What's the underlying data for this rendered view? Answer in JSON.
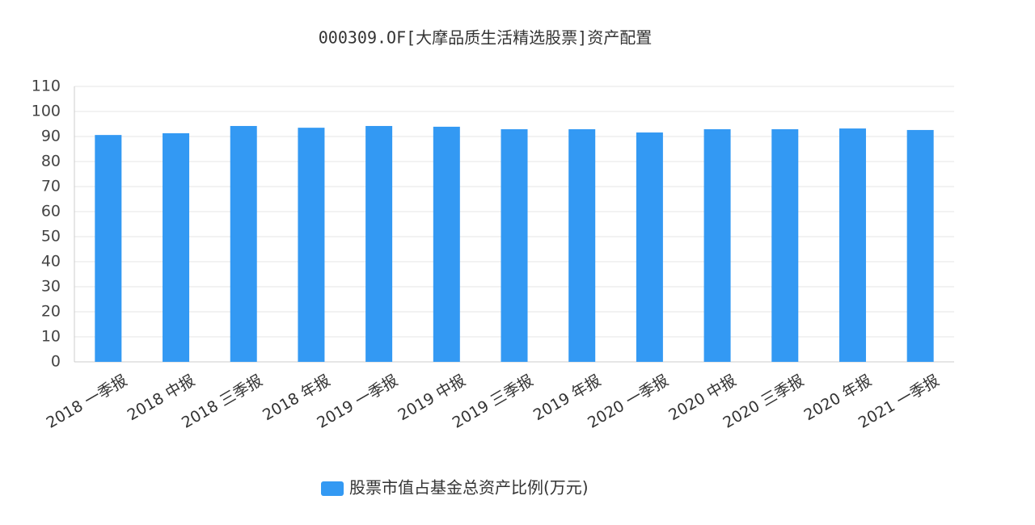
{
  "chart_data": {
    "type": "bar",
    "title": "000309.OF[大摩品质生活精选股票]资产配置",
    "categories": [
      "2018 一季报",
      "2018 中报",
      "2018 三季报",
      "2018 年报",
      "2019 一季报",
      "2019 中报",
      "2019 三季报",
      "2019 年报",
      "2020 一季报",
      "2020 中报",
      "2020 三季报",
      "2020 年报",
      "2021 一季报"
    ],
    "series": [
      {
        "name": "股票市值占基金总资产比例(万元)",
        "color": "#3399f3",
        "values": [
          90.6,
          91.3,
          94.2,
          93.5,
          94.2,
          93.9,
          92.9,
          92.9,
          91.6,
          92.9,
          92.9,
          93.2,
          92.6
        ]
      }
    ],
    "ylim": [
      0,
      110
    ],
    "yticks": [
      0,
      10,
      20,
      30,
      40,
      50,
      60,
      70,
      80,
      90,
      100,
      110
    ],
    "grid": true
  }
}
